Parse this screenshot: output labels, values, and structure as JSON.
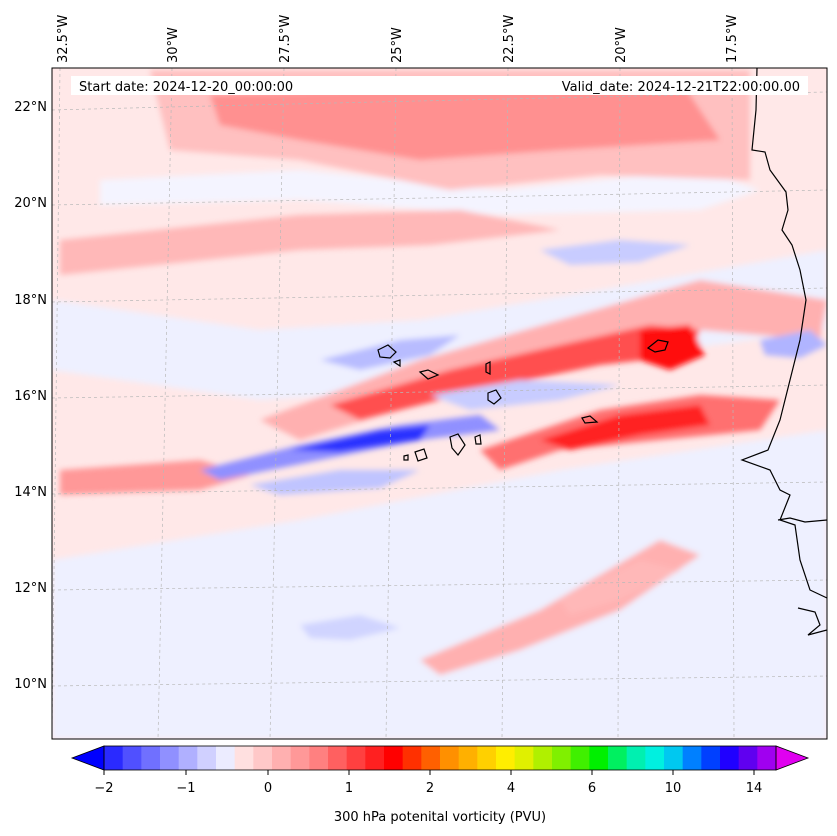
{
  "header": {
    "start_date": "Start date: 2024-12-20_00:00:00",
    "valid_date": "Valid_date: 2024-12-21T22:00:00.00"
  },
  "map": {
    "projection": "lambert-conformal",
    "longitude_labels": [
      "32.5°W",
      "30°W",
      "27.5°W",
      "25°W",
      "22.5°W",
      "20°W",
      "17.5°W"
    ],
    "latitude_labels": [
      "22°N",
      "20°N",
      "18°N",
      "16°N",
      "14°N",
      "12°N",
      "10°N"
    ],
    "gridlines": "dashed",
    "coastlines": [
      "West African coast",
      "Cape Verde islands"
    ],
    "colors": {
      "background": "#ffecec",
      "near_zero": "#eef0ff",
      "positive_light": "#ffd0d0",
      "positive_mid": "#ff8a8a",
      "positive_strong": "#ff2020",
      "negative_light": "#d0d4ff",
      "negative_strong": "#1a24ff"
    }
  },
  "colorbar": {
    "label": "300 hPa potenital vorticity (PVU)",
    "tick_labels": [
      "−2",
      "−1",
      "0",
      "1",
      "2",
      "4",
      "6",
      "10",
      "14"
    ],
    "colors": [
      "#0000ff",
      "#2a2aff",
      "#5050ff",
      "#7070ff",
      "#9090ff",
      "#b0b0ff",
      "#d0d0ff",
      "#ececff",
      "#ffe0e0",
      "#ffc8c8",
      "#ffb0b0",
      "#ff9898",
      "#ff8080",
      "#ff6060",
      "#ff4040",
      "#ff2020",
      "#ff0000",
      "#ff3000",
      "#ff6000",
      "#ff9000",
      "#ffb000",
      "#ffd000",
      "#ffee00",
      "#e0f000",
      "#b0f000",
      "#80f000",
      "#40f000",
      "#00f000",
      "#00f060",
      "#00f0b0",
      "#00f0e0",
      "#00c8f0",
      "#0080ff",
      "#0040ff",
      "#2000ff",
      "#6000f0",
      "#a000f0",
      "#e000f0"
    ]
  }
}
